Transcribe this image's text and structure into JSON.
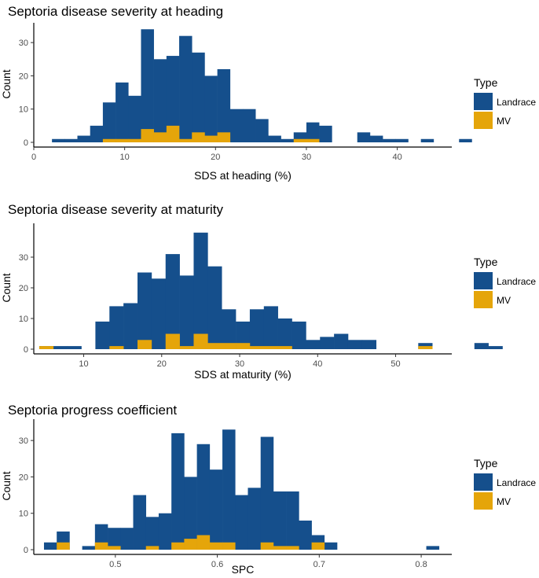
{
  "colors": {
    "landrace": "#154f8c",
    "mv": "#e5a50a",
    "axis": "#000000",
    "tick_text": "#4d4d4d"
  },
  "legend": {
    "title": "Type",
    "items": [
      "Landrace",
      "MV"
    ]
  },
  "chart_data": [
    {
      "type": "histogram",
      "title": "Septoria disease severity at heading",
      "xlabel": "SDS at heading (%)",
      "ylabel": "Count",
      "xlim": [
        0,
        46
      ],
      "ylim": [
        0,
        35
      ],
      "xticks": [
        0,
        10,
        20,
        30,
        40
      ],
      "xtick_labels": [
        "0",
        "10",
        "20",
        "30",
        "40"
      ],
      "yticks": [
        0,
        10,
        20,
        30
      ],
      "ytick_labels": [
        "0",
        "10",
        "20",
        "30"
      ],
      "bin_start": 2,
      "bin_width": 1.4,
      "series": [
        {
          "name": "Landrace",
          "values": [
            1,
            1,
            2,
            5,
            12,
            18,
            14,
            34,
            25,
            26,
            32,
            27,
            20,
            22,
            10,
            10,
            7,
            2,
            1,
            3,
            6,
            5,
            0,
            0,
            3,
            2,
            1,
            1,
            0,
            1,
            0,
            0,
            1
          ]
        },
        {
          "name": "MV",
          "values": [
            0,
            0,
            0,
            0,
            1,
            1,
            1,
            4,
            3,
            5,
            1,
            3,
            2,
            3,
            0,
            0,
            0,
            0,
            0,
            1,
            1,
            0,
            0,
            0,
            0,
            0,
            0,
            0,
            0,
            0,
            0,
            0,
            0
          ]
        }
      ]
    },
    {
      "type": "histogram",
      "title": "Septoria disease severity at maturity",
      "xlabel": "SDS at maturity (%)",
      "ylabel": "Count",
      "xlim": [
        3.6,
        57.2
      ],
      "ylim": [
        0,
        40
      ],
      "xticks": [
        10,
        20,
        30,
        40,
        50
      ],
      "xtick_labels": [
        "10",
        "20",
        "30",
        "40",
        "50"
      ],
      "yticks": [
        0,
        10,
        20,
        30
      ],
      "ytick_labels": [
        "0",
        "10",
        "20",
        "30"
      ],
      "bin_start": 4.3,
      "bin_width": 1.8,
      "series": [
        {
          "name": "Landrace",
          "values": [
            1,
            1,
            1,
            0,
            9,
            14,
            15,
            25,
            23,
            31,
            24,
            38,
            27,
            13,
            9,
            13,
            14,
            10,
            9,
            3,
            4,
            5,
            3,
            3,
            0,
            0,
            0,
            2,
            0,
            0,
            0,
            2,
            1
          ]
        },
        {
          "name": "MV",
          "values": [
            1,
            0,
            0,
            0,
            0,
            1,
            0,
            3,
            0,
            5,
            1,
            5,
            2,
            2,
            2,
            1,
            1,
            1,
            0,
            0,
            0,
            0,
            0,
            0,
            0,
            0,
            0,
            1,
            0,
            0,
            0,
            0,
            0
          ]
        }
      ]
    },
    {
      "type": "histogram",
      "title": "Septoria progress coefficient",
      "xlabel": "SPC",
      "ylabel": "Count",
      "xlim": [
        0.42,
        0.83
      ],
      "ylim": [
        0,
        35
      ],
      "xticks": [
        0.5,
        0.6,
        0.7,
        0.8
      ],
      "xtick_labels": [
        "0.5",
        "0.6",
        "0.7",
        "0.8"
      ],
      "yticks": [
        0,
        10,
        20,
        30
      ],
      "ytick_labels": [
        "0",
        "10",
        "20",
        "30"
      ],
      "bin_start": 0.43,
      "bin_width": 0.0125,
      "series": [
        {
          "name": "Landrace",
          "values": [
            2,
            5,
            0,
            1,
            7,
            6,
            6,
            15,
            9,
            10,
            32,
            20,
            29,
            22,
            33,
            15,
            17,
            31,
            16,
            16,
            8,
            4,
            2,
            0,
            0,
            0,
            0,
            0,
            0,
            0,
            1
          ]
        },
        {
          "name": "MV",
          "values": [
            0,
            2,
            0,
            0,
            2,
            1,
            0,
            0,
            1,
            0,
            2,
            3,
            4,
            2,
            2,
            0,
            0,
            2,
            1,
            1,
            0,
            2,
            0,
            0,
            0,
            0,
            0,
            0,
            0,
            0,
            0
          ]
        }
      ]
    }
  ]
}
